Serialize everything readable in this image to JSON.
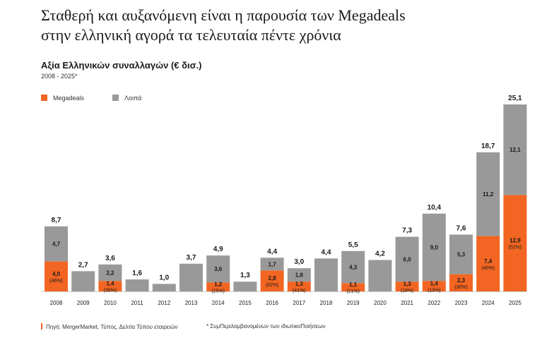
{
  "headline_line1": "Σταθερή και αυξανόμενη είναι η παρουσία των Megadeals",
  "headline_line2": "στην ελληνική αγορά τα τελευταία πέντε χρόνια",
  "colors": {
    "megadeals": "#f26522",
    "other": "#999999",
    "text": "#1a1a1a"
  },
  "chart_data": {
    "type": "bar",
    "stacked": true,
    "title": "Αξία Ελληνικών συναλλαγών (€ δισ.)",
    "subtitle": "2008 - 2025*",
    "legend_position": "top-left",
    "grid": false,
    "ylim": [
      0,
      26
    ],
    "categories": [
      "2008",
      "2009",
      "2010",
      "2011",
      "2012",
      "2013",
      "2014",
      "2015",
      "2016",
      "2017",
      "2018",
      "2019",
      "2020",
      "2021",
      "2022",
      "2023",
      "2024",
      "2025"
    ],
    "totals": [
      "8,7",
      "2,7",
      "3,6",
      "1,6",
      "1,0",
      "3,7",
      "4,9",
      "1,3",
      "4,4",
      "3,0",
      "4,4",
      "5,5",
      "4,2",
      "7,3",
      "10,4",
      "7,6",
      "18,7",
      "25,1"
    ],
    "series": [
      {
        "name": "Megadeals",
        "values": [
          4.0,
          0,
          1.4,
          0,
          0,
          0,
          1.2,
          0,
          2.8,
          1.3,
          0,
          1.1,
          0,
          1.3,
          1.4,
          2.3,
          7.4,
          12.9
        ],
        "labels": [
          "4,0",
          "",
          "1,4",
          "",
          "",
          "",
          "1,2",
          "",
          "2,8",
          "1,3",
          "",
          "1,1",
          "",
          "1,3",
          "1,4",
          "2,3",
          "7,4",
          "12,9"
        ],
        "shares": [
          "(46%)",
          "",
          "(38%)",
          "",
          "",
          "",
          "(25%)",
          "",
          "(62%)",
          "(41%)",
          "",
          "(21%)",
          "",
          "(18%)",
          "(13%)",
          "(30%)",
          "(40%)",
          "(52%)"
        ]
      },
      {
        "name": "Λοιπά",
        "values": [
          4.7,
          2.7,
          2.2,
          1.6,
          1.0,
          3.7,
          3.6,
          1.3,
          1.7,
          1.8,
          4.4,
          4.3,
          4.2,
          6.0,
          9.0,
          5.3,
          11.2,
          12.1
        ],
        "labels": [
          "4,7",
          "",
          "2,2",
          "",
          "",
          "",
          "3,6",
          "",
          "1,7",
          "1,8",
          "",
          "4,3",
          "",
          "6,0",
          "9,0",
          "5,3",
          "11,2",
          "12,1"
        ]
      }
    ]
  },
  "source": "Πηγή: MergerMarket, Τύπος, Δελτία Τύπου εταιρειών",
  "note": "* ΣυμΠεριλαμβανομένων των ιδιωτικοΠοιήσεων"
}
